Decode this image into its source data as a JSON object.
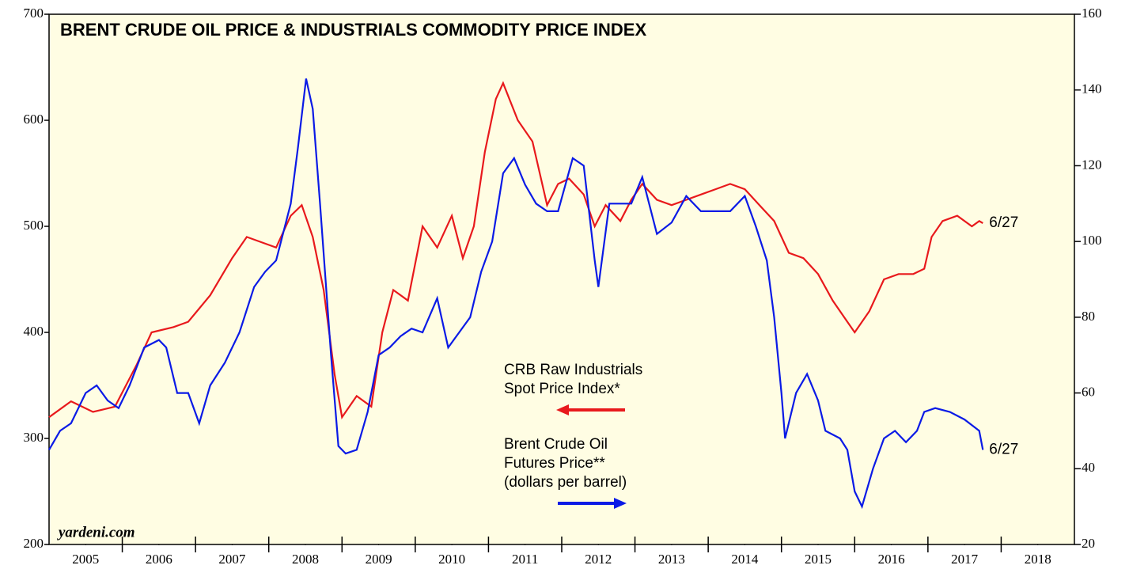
{
  "chart_data": {
    "type": "line",
    "title": "BRENT CRUDE OIL PRICE & INDUSTRIALS COMMODITY PRICE INDEX",
    "source": "yardeni.com",
    "xlim": [
      2005,
      2019
    ],
    "xticks": [
      {
        "value": 2005.5,
        "label": "2005"
      },
      {
        "value": 2006.5,
        "label": "2006"
      },
      {
        "value": 2007.5,
        "label": "2007"
      },
      {
        "value": 2008.5,
        "label": "2008"
      },
      {
        "value": 2009.5,
        "label": "2009"
      },
      {
        "value": 2010.5,
        "label": "2010"
      },
      {
        "value": 2011.5,
        "label": "2011"
      },
      {
        "value": 2012.5,
        "label": "2012"
      },
      {
        "value": 2013.5,
        "label": "2013"
      },
      {
        "value": 2014.5,
        "label": "2014"
      },
      {
        "value": 2015.5,
        "label": "2015"
      },
      {
        "value": 2016.5,
        "label": "2016"
      },
      {
        "value": 2017.5,
        "label": "2017"
      },
      {
        "value": 2018.5,
        "label": "2018"
      }
    ],
    "ylim": [
      200,
      700
    ],
    "yticks": [
      200,
      300,
      400,
      500,
      600,
      700
    ],
    "y2lim": [
      20,
      160
    ],
    "y2ticks": [
      20,
      40,
      60,
      80,
      100,
      120,
      140,
      160
    ],
    "series": [
      {
        "name": [
          "CRB Raw Industrials",
          "Spot Price Index*"
        ],
        "color": "#e8191c",
        "axis": "y",
        "end_label": "6/27",
        "x": [
          2005.0,
          2005.3,
          2005.6,
          2005.9,
          2006.2,
          2006.4,
          2006.7,
          2006.9,
          2007.2,
          2007.5,
          2007.7,
          2007.9,
          2008.1,
          2008.3,
          2008.45,
          2008.6,
          2008.75,
          2008.9,
          2009.0,
          2009.2,
          2009.4,
          2009.55,
          2009.7,
          2009.9,
          2010.1,
          2010.3,
          2010.5,
          2010.65,
          2010.8,
          2010.95,
          2011.1,
          2011.2,
          2011.4,
          2011.6,
          2011.8,
          2011.95,
          2012.1,
          2012.3,
          2012.45,
          2012.6,
          2012.8,
          2012.95,
          2013.1,
          2013.3,
          2013.5,
          2013.7,
          2013.9,
          2014.1,
          2014.3,
          2014.5,
          2014.7,
          2014.9,
          2015.1,
          2015.3,
          2015.5,
          2015.7,
          2015.9,
          2016.0,
          2016.2,
          2016.4,
          2016.6,
          2016.8,
          2016.95,
          2017.05,
          2017.2,
          2017.4,
          2017.6,
          2017.7,
          2017.75
        ],
        "values": [
          320,
          335,
          325,
          330,
          370,
          400,
          405,
          410,
          435,
          470,
          490,
          485,
          480,
          510,
          520,
          490,
          440,
          360,
          320,
          340,
          330,
          400,
          440,
          430,
          500,
          480,
          510,
          470,
          500,
          570,
          620,
          635,
          600,
          580,
          520,
          540,
          545,
          530,
          500,
          520,
          505,
          525,
          540,
          525,
          520,
          525,
          530,
          535,
          540,
          535,
          520,
          505,
          475,
          470,
          455,
          430,
          410,
          400,
          420,
          450,
          455,
          455,
          460,
          490,
          505,
          510,
          500,
          505,
          503
        ]
      },
      {
        "name": [
          "Brent Crude Oil",
          "Futures Price**",
          "(dollars per barrel)"
        ],
        "color": "#0a1ae6",
        "axis": "y2",
        "end_label": "6/27",
        "x": [
          2005.0,
          2005.15,
          2005.3,
          2005.5,
          2005.65,
          2005.8,
          2005.95,
          2006.1,
          2006.3,
          2006.5,
          2006.6,
          2006.75,
          2006.9,
          2007.05,
          2007.2,
          2007.4,
          2007.6,
          2007.8,
          2007.95,
          2008.1,
          2008.3,
          2008.4,
          2008.51,
          2008.6,
          2008.7,
          2008.85,
          2008.95,
          2009.05,
          2009.2,
          2009.35,
          2009.5,
          2009.65,
          2009.8,
          2009.95,
          2010.1,
          2010.3,
          2010.45,
          2010.6,
          2010.75,
          2010.9,
          2011.05,
          2011.2,
          2011.35,
          2011.5,
          2011.65,
          2011.8,
          2011.95,
          2012.15,
          2012.3,
          2012.45,
          2012.5,
          2012.65,
          2012.8,
          2012.95,
          2013.1,
          2013.3,
          2013.5,
          2013.7,
          2013.9,
          2014.1,
          2014.3,
          2014.5,
          2014.65,
          2014.8,
          2014.9,
          2015.0,
          2015.05,
          2015.2,
          2015.35,
          2015.5,
          2015.6,
          2015.8,
          2015.9,
          2016.0,
          2016.1,
          2016.25,
          2016.4,
          2016.55,
          2016.7,
          2016.85,
          2016.95,
          2017.1,
          2017.3,
          2017.5,
          2017.7,
          2017.75
        ],
        "values": [
          45,
          50,
          52,
          60,
          62,
          58,
          56,
          62,
          72,
          74,
          72,
          60,
          60,
          52,
          62,
          68,
          76,
          88,
          92,
          95,
          110,
          125,
          143,
          135,
          110,
          70,
          46,
          44,
          45,
          55,
          70,
          72,
          75,
          77,
          76,
          85,
          72,
          76,
          80,
          92,
          100,
          118,
          122,
          115,
          110,
          108,
          108,
          122,
          120,
          95,
          88,
          110,
          110,
          110,
          117,
          102,
          105,
          112,
          108,
          108,
          108,
          112,
          104,
          95,
          80,
          60,
          48,
          60,
          65,
          58,
          50,
          48,
          45,
          34,
          30,
          40,
          48,
          50,
          47,
          50,
          55,
          56,
          55,
          53,
          50,
          45
        ]
      }
    ]
  }
}
